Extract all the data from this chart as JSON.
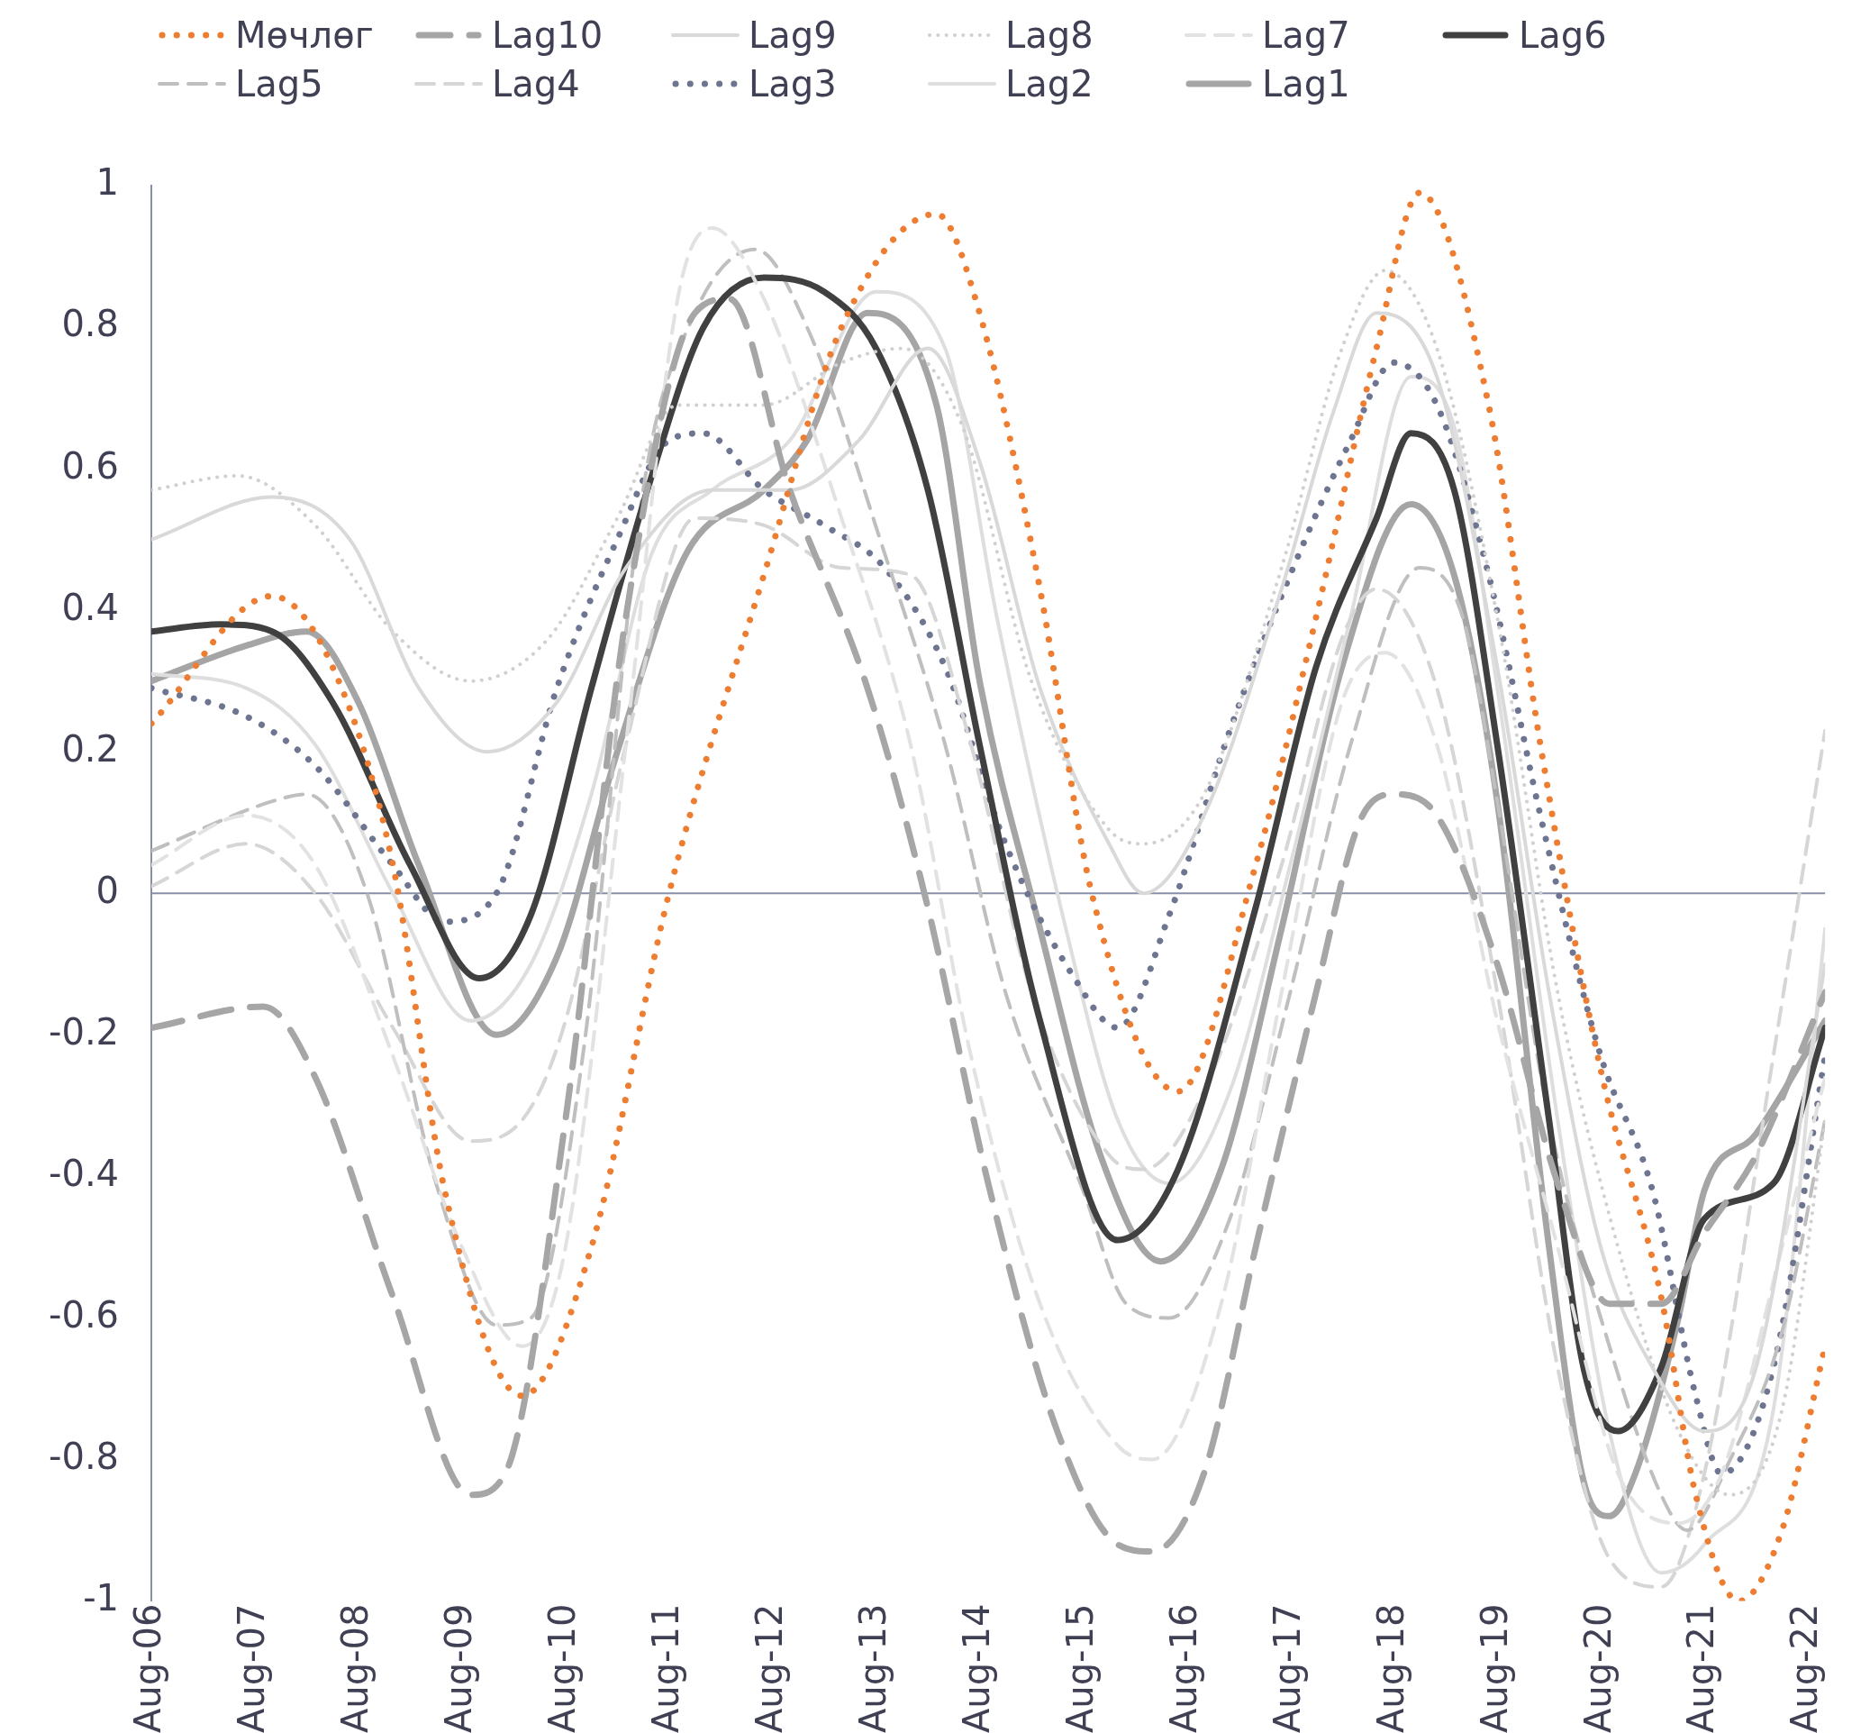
{
  "chart_data": {
    "type": "line",
    "legend": "top",
    "grid": false,
    "xlim": [
      "2006-08",
      "2022-10"
    ],
    "xticks": [
      {
        "value": "2006-08",
        "label": "Aug-06"
      },
      {
        "value": "2007-08",
        "label": "Aug-07"
      },
      {
        "value": "2008-08",
        "label": "Aug-08"
      },
      {
        "value": "2009-08",
        "label": "Aug-09"
      },
      {
        "value": "2010-08",
        "label": "Aug-10"
      },
      {
        "value": "2011-08",
        "label": "Aug-11"
      },
      {
        "value": "2012-08",
        "label": "Aug-12"
      },
      {
        "value": "2013-08",
        "label": "Aug-13"
      },
      {
        "value": "2014-08",
        "label": "Aug-14"
      },
      {
        "value": "2015-08",
        "label": "Aug-15"
      },
      {
        "value": "2016-08",
        "label": "Aug-16"
      },
      {
        "value": "2017-08",
        "label": "Aug-17"
      },
      {
        "value": "2018-08",
        "label": "Aug-18"
      },
      {
        "value": "2019-08",
        "label": "Aug-19"
      },
      {
        "value": "2020-08",
        "label": "Aug-20"
      },
      {
        "value": "2021-08",
        "label": "Aug-21"
      },
      {
        "value": "2022-08",
        "label": "Aug-22"
      }
    ],
    "ref_lines": [
      {
        "axis": "y",
        "value": 0,
        "color": "#8a8fa8",
        "line_style": "solid"
      }
    ],
    "ylim": [
      -1,
      1
    ],
    "yticks": [
      -1,
      -0.8,
      -0.6,
      -0.4,
      -0.2,
      0,
      0.2,
      0.4,
      0.6,
      0.8,
      1
    ],
    "series": [
      {
        "name": "Мөчлөг",
        "color": "#ed7d31",
        "line_style": "dotted",
        "x": [
          "2006-08",
          "2007-10",
          "2008-05",
          "2008-12",
          "2009-06",
          "2010-03",
          "2010-11",
          "2011-08",
          "2012-07",
          "2013-04",
          "2014-03",
          "2014-08",
          "2015-03",
          "2015-09",
          "2016-07",
          "2017-04",
          "2017-11",
          "2018-06",
          "2018-11",
          "2019-07",
          "2020-01",
          "2020-08",
          "2021-03",
          "2021-07",
          "2021-12",
          "2022-05",
          "2022-10"
        ],
        "values": [
          0.24,
          0.42,
          0.32,
          0.04,
          -0.42,
          -0.71,
          -0.5,
          0,
          0.45,
          0.8,
          0.96,
          0.82,
          0.43,
          0,
          -0.28,
          0.04,
          0.39,
          0.77,
          0.99,
          0.69,
          0.21,
          -0.25,
          -0.57,
          -0.85,
          -1,
          -0.9,
          -0.64
        ]
      },
      {
        "name": "Lag10",
        "color": "#a6a6a6",
        "line_style": "dashed",
        "x": [
          "2006-08",
          "2007-09",
          "2008-03",
          "2008-12",
          "2009-09",
          "2010-01",
          "2010-08",
          "2011-03",
          "2011-11",
          "2012-03",
          "2012-10",
          "2013-07",
          "2014-02",
          "2014-09",
          "2015-05",
          "2015-12",
          "2016-04",
          "2016-10",
          "2017-04",
          "2017-11",
          "2018-04",
          "2018-08",
          "2019-01",
          "2019-08",
          "2020-03",
          "2020-09",
          "2021-03",
          "2021-08",
          "2022-02",
          "2022-10"
        ],
        "values": [
          -0.19,
          -0.16,
          -0.26,
          -0.57,
          -0.85,
          -0.82,
          -0.32,
          0.39,
          0.82,
          0.84,
          0.57,
          0.29,
          -0.02,
          -0.41,
          -0.76,
          -0.92,
          -0.93,
          -0.82,
          -0.5,
          -0.14,
          0.1,
          0.14,
          0.11,
          -0.1,
          -0.41,
          -0.58,
          -0.58,
          -0.48,
          -0.37,
          -0.14
        ]
      },
      {
        "name": "Lag9",
        "color": "#d9d9d9",
        "line_style": "solid",
        "x": [
          "2006-08",
          "2007-10",
          "2008-07",
          "2009-03",
          "2009-11",
          "2010-07",
          "2011-03",
          "2012-01",
          "2012-10",
          "2013-06",
          "2014-02",
          "2014-08",
          "2015-03",
          "2015-11",
          "2016-03",
          "2016-10",
          "2017-07",
          "2018-01",
          "2018-06",
          "2019-01",
          "2019-08",
          "2020-02",
          "2020-08",
          "2021-02",
          "2021-08",
          "2022-02",
          "2022-10"
        ],
        "values": [
          0.5,
          0.56,
          0.5,
          0.29,
          0.2,
          0.27,
          0.46,
          0.57,
          0.57,
          0.64,
          0.77,
          0.61,
          0.29,
          0.07,
          0,
          0.11,
          0.43,
          0.68,
          0.82,
          0.73,
          0.32,
          -0.14,
          -0.5,
          -0.67,
          -0.76,
          -0.67,
          -0.1
        ]
      },
      {
        "name": "Lag8",
        "color": "#d0d0d0",
        "line_style": "dotted",
        "x": [
          "2006-08",
          "2007-06",
          "2008-03",
          "2008-12",
          "2009-09",
          "2010-06",
          "2011-02",
          "2011-09",
          "2012-07",
          "2013-04",
          "2013-11",
          "2014-06",
          "2015-02",
          "2015-11",
          "2016-03",
          "2016-10",
          "2017-07",
          "2018-02",
          "2018-07",
          "2019-01",
          "2019-08",
          "2020-03",
          "2020-10",
          "2021-05",
          "2021-11",
          "2022-05",
          "2022-10"
        ],
        "values": [
          0.57,
          0.59,
          0.52,
          0.37,
          0.3,
          0.36,
          0.53,
          0.69,
          0.69,
          0.75,
          0.77,
          0.66,
          0.3,
          0.09,
          0.07,
          0.14,
          0.46,
          0.77,
          0.88,
          0.77,
          0.39,
          -0.14,
          -0.5,
          -0.76,
          -0.85,
          -0.73,
          -0.32
        ]
      },
      {
        "name": "Lag7",
        "color": "#e2e2e2",
        "line_style": "dashed",
        "x": [
          "2006-08",
          "2007-07",
          "2008-03",
          "2008-12",
          "2009-08",
          "2010-03",
          "2010-08",
          "2011-03",
          "2011-09",
          "2012-01",
          "2012-07",
          "2013-04",
          "2013-12",
          "2014-07",
          "2015-03",
          "2015-12",
          "2016-04",
          "2016-12",
          "2017-07",
          "2018-02",
          "2018-07",
          "2019-01",
          "2019-08",
          "2020-03",
          "2020-10",
          "2021-05",
          "2021-10",
          "2022-05",
          "2022-10"
        ],
        "values": [
          0.04,
          0.11,
          0.04,
          -0.23,
          -0.5,
          -0.64,
          -0.5,
          0.21,
          0.84,
          0.94,
          0.84,
          0.53,
          0.21,
          -0.23,
          -0.58,
          -0.78,
          -0.8,
          -0.58,
          -0.14,
          0.27,
          0.34,
          0.21,
          -0.18,
          -0.5,
          -0.82,
          -0.89,
          -0.82,
          -0.5,
          -0.26
        ]
      },
      {
        "name": "Lag6",
        "color": "#404040",
        "line_style": "solid",
        "x": [
          "2006-08",
          "2007-04",
          "2007-10",
          "2008-05",
          "2009-02",
          "2009-10",
          "2010-04",
          "2010-11",
          "2011-06",
          "2011-12",
          "2012-07",
          "2013-02",
          "2013-08",
          "2014-02",
          "2014-08",
          "2015-03",
          "2015-12",
          "2016-07",
          "2017-04",
          "2017-11",
          "2018-06",
          "2018-10",
          "2019-03",
          "2019-08",
          "2020-02",
          "2020-06",
          "2020-10",
          "2021-03",
          "2021-08",
          "2022-04",
          "2022-10"
        ],
        "values": [
          0.37,
          0.38,
          0.37,
          0.27,
          0.04,
          -0.12,
          -0.03,
          0.29,
          0.59,
          0.8,
          0.87,
          0.85,
          0.77,
          0.57,
          0.21,
          -0.18,
          -0.49,
          -0.39,
          -0.02,
          0.32,
          0.53,
          0.65,
          0.57,
          0.21,
          -0.32,
          -0.67,
          -0.76,
          -0.67,
          -0.46,
          -0.41,
          -0.19
        ]
      },
      {
        "name": "Lag5",
        "color": "#bfbfbf",
        "line_style": "dashed",
        "x": [
          "2006-08",
          "2007-10",
          "2008-02",
          "2008-09",
          "2009-05",
          "2009-12",
          "2010-04",
          "2010-10",
          "2011-05",
          "2011-11",
          "2012-06",
          "2012-12",
          "2013-09",
          "2014-04",
          "2014-11",
          "2015-08",
          "2016-01",
          "2016-06",
          "2017-01",
          "2017-08",
          "2018-03",
          "2018-11",
          "2019-04",
          "2019-08",
          "2020-02",
          "2020-09",
          "2021-03",
          "2021-06",
          "2021-11",
          "2022-05",
          "2022-10"
        ],
        "values": [
          0.06,
          0.13,
          0.14,
          0,
          -0.41,
          -0.61,
          -0.6,
          -0.23,
          0.57,
          0.82,
          0.91,
          0.8,
          0.48,
          0.21,
          -0.14,
          -0.42,
          -0.58,
          -0.6,
          -0.46,
          -0.14,
          0.21,
          0.46,
          0.39,
          0.13,
          -0.32,
          -0.64,
          -0.85,
          -0.9,
          -0.8,
          -0.62,
          -0.32
        ]
      },
      {
        "name": "Lag4",
        "color": "#d6d6d6",
        "line_style": "dashed",
        "x": [
          "2006-08",
          "2007-07",
          "2008-03",
          "2008-12",
          "2009-09",
          "2010-03",
          "2010-08",
          "2011-03",
          "2011-11",
          "2012-07",
          "2013-04",
          "2013-12",
          "2014-07",
          "2015-02",
          "2015-11",
          "2016-03",
          "2016-10",
          "2017-07",
          "2018-02",
          "2018-06",
          "2019-01",
          "2019-08",
          "2020-03",
          "2020-09",
          "2021-03",
          "2021-08",
          "2022-04",
          "2022-10"
        ],
        "values": [
          0.01,
          0.07,
          0,
          -0.19,
          -0.35,
          -0.32,
          -0.18,
          0.21,
          0.53,
          0.52,
          0.46,
          0.45,
          0.21,
          -0.14,
          -0.37,
          -0.39,
          -0.28,
          0.04,
          0.36,
          0.43,
          0.29,
          -0.14,
          -0.67,
          -0.94,
          -0.98,
          -0.82,
          -0.23,
          0.23
        ]
      },
      {
        "name": "Lag3",
        "color": "#6e7591",
        "line_style": "dotted",
        "x": [
          "2006-08",
          "2007-07",
          "2008-03",
          "2008-12",
          "2009-06",
          "2009-12",
          "2010-07",
          "2011-02",
          "2011-08",
          "2011-12",
          "2012-07",
          "2013-02",
          "2013-09",
          "2014-04",
          "2014-11",
          "2015-07",
          "2015-12",
          "2016-06",
          "2017-01",
          "2017-08",
          "2018-03",
          "2018-08",
          "2019-01",
          "2019-07",
          "2020-01",
          "2020-08",
          "2021-02",
          "2021-07",
          "2021-10",
          "2022-04",
          "2022-10"
        ],
        "values": [
          0.29,
          0.25,
          0.18,
          0.04,
          -0.04,
          0,
          0.29,
          0.5,
          0.64,
          0.65,
          0.57,
          0.52,
          0.46,
          0.32,
          0.07,
          -0.12,
          -0.19,
          -0.03,
          0.23,
          0.45,
          0.64,
          0.75,
          0.69,
          0.45,
          0.11,
          -0.23,
          -0.42,
          -0.71,
          -0.82,
          -0.67,
          -0.23
        ]
      },
      {
        "name": "Lag2",
        "color": "#dedede",
        "line_style": "solid",
        "x": [
          "2006-08",
          "2007-07",
          "2008-03",
          "2008-12",
          "2009-09",
          "2010-04",
          "2010-11",
          "2011-06",
          "2012-01",
          "2012-10",
          "2013-08",
          "2014-04",
          "2014-10",
          "2015-06",
          "2015-12",
          "2016-06",
          "2017-01",
          "2017-08",
          "2018-03",
          "2018-10",
          "2019-03",
          "2019-08",
          "2020-03",
          "2020-09",
          "2021-03",
          "2021-08",
          "2022-04",
          "2022-10"
        ],
        "values": [
          0.31,
          0.29,
          0.21,
          0,
          -0.18,
          -0.1,
          0.14,
          0.48,
          0.57,
          0.64,
          0.85,
          0.77,
          0.39,
          -0.05,
          -0.32,
          -0.41,
          -0.28,
          0.04,
          0.39,
          0.73,
          0.66,
          0.29,
          -0.32,
          -0.76,
          -0.96,
          -0.92,
          -0.73,
          -0.05
        ]
      },
      {
        "name": "Lag1",
        "color": "#a5a5a5",
        "line_style": "solid",
        "x": [
          "2006-08",
          "2007-07",
          "2008-02",
          "2008-08",
          "2009-03",
          "2009-12",
          "2010-07",
          "2011-02",
          "2011-10",
          "2012-07",
          "2012-12",
          "2013-07",
          "2014-03",
          "2014-08",
          "2015-03",
          "2015-10",
          "2016-05",
          "2016-12",
          "2017-07",
          "2018-02",
          "2018-10",
          "2019-03",
          "2019-08",
          "2020-02",
          "2020-06",
          "2020-09",
          "2020-12",
          "2021-05",
          "2021-08",
          "2022-02",
          "2022-10"
        ],
        "values": [
          0.3,
          0.35,
          0.37,
          0.27,
          0.04,
          -0.2,
          -0.09,
          0.2,
          0.48,
          0.57,
          0.64,
          0.82,
          0.69,
          0.3,
          -0.05,
          -0.37,
          -0.52,
          -0.39,
          -0.05,
          0.32,
          0.55,
          0.45,
          0.13,
          -0.5,
          -0.83,
          -0.88,
          -0.82,
          -0.6,
          -0.42,
          -0.34,
          -0.18
        ]
      }
    ]
  }
}
